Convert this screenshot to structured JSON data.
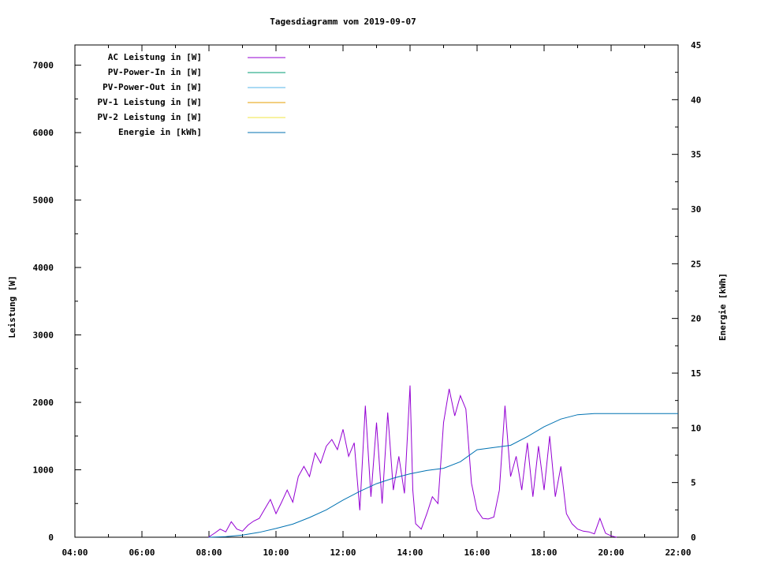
{
  "chart_data": {
    "type": "line",
    "title": "Tagesdiagramm vom 2019-09-07",
    "ylabel": "Leistung [W]",
    "y2label": "Energie [kWh]",
    "xlim": [
      "04:00",
      "22:00"
    ],
    "ylim": [
      0,
      7300
    ],
    "y2lim": [
      0,
      45
    ],
    "x_ticks": [
      "04:00",
      "06:00",
      "08:00",
      "10:00",
      "12:00",
      "14:00",
      "16:00",
      "18:00",
      "20:00",
      "22:00"
    ],
    "y_ticks": [
      0,
      1000,
      2000,
      3000,
      4000,
      5000,
      6000,
      7000
    ],
    "y2_ticks": [
      0,
      5,
      10,
      15,
      20,
      25,
      30,
      35,
      40,
      45
    ],
    "grid": false,
    "legend_position": "top-left",
    "series": [
      {
        "name": "AC Leistung in [W]",
        "color": "#9400d3",
        "axis": "left",
        "x": [
          "07:59",
          "08:10",
          "08:20",
          "08:30",
          "08:40",
          "08:50",
          "09:00",
          "09:10",
          "09:20",
          "09:30",
          "09:40",
          "09:50",
          "10:00",
          "10:10",
          "10:20",
          "10:30",
          "10:40",
          "10:50",
          "11:00",
          "11:10",
          "11:20",
          "11:30",
          "11:40",
          "11:50",
          "12:00",
          "12:10",
          "12:20",
          "12:30",
          "12:40",
          "12:50",
          "13:00",
          "13:10",
          "13:20",
          "13:30",
          "13:40",
          "13:50",
          "14:00",
          "14:05",
          "14:10",
          "14:20",
          "14:30",
          "14:40",
          "14:50",
          "15:00",
          "15:10",
          "15:20",
          "15:30",
          "15:40",
          "15:50",
          "16:00",
          "16:10",
          "16:20",
          "16:30",
          "16:40",
          "16:50",
          "17:00",
          "17:10",
          "17:20",
          "17:30",
          "17:40",
          "17:50",
          "18:00",
          "18:10",
          "18:20",
          "18:30",
          "18:40",
          "18:50",
          "19:00",
          "19:10",
          "19:20",
          "19:30",
          "19:40",
          "19:50",
          "20:00",
          "20:10"
        ],
        "y": [
          0,
          60,
          120,
          80,
          230,
          120,
          90,
          180,
          240,
          280,
          420,
          560,
          350,
          520,
          700,
          520,
          900,
          1050,
          900,
          1250,
          1100,
          1350,
          1450,
          1300,
          1600,
          1200,
          1400,
          400,
          1950,
          600,
          1700,
          500,
          1850,
          700,
          1200,
          650,
          2250,
          700,
          200,
          120,
          350,
          600,
          500,
          1700,
          2200,
          1800,
          2100,
          1900,
          800,
          400,
          280,
          270,
          300,
          700,
          1950,
          900,
          1200,
          700,
          1400,
          600,
          1350,
          700,
          1500,
          600,
          1050,
          350,
          200,
          120,
          90,
          80,
          50,
          280,
          60,
          20,
          0
        ]
      },
      {
        "name": "PV-Power-In in [W]",
        "color": "#009e73",
        "axis": "left",
        "x": [],
        "y": []
      },
      {
        "name": "PV-Power-Out in [W]",
        "color": "#56b4e9",
        "axis": "left",
        "x": [],
        "y": []
      },
      {
        "name": "PV-1 Leistung in [W]",
        "color": "#e69f00",
        "axis": "left",
        "x": [],
        "y": []
      },
      {
        "name": "PV-2 Leistung in [W]",
        "color": "#f0e442",
        "axis": "left",
        "x": [],
        "y": []
      },
      {
        "name": "Energie in [kWh]",
        "color": "#0072b2",
        "axis": "right",
        "x": [
          "08:00",
          "08:30",
          "09:00",
          "09:30",
          "10:00",
          "10:30",
          "11:00",
          "11:30",
          "12:00",
          "12:30",
          "13:00",
          "13:30",
          "14:00",
          "14:30",
          "15:00",
          "15:30",
          "16:00",
          "16:30",
          "17:00",
          "17:30",
          "18:00",
          "18:30",
          "19:00",
          "19:30",
          "20:00",
          "21:00",
          "22:00"
        ],
        "y": [
          0,
          0.05,
          0.2,
          0.45,
          0.8,
          1.2,
          1.8,
          2.5,
          3.4,
          4.2,
          4.9,
          5.4,
          5.8,
          6.1,
          6.3,
          6.9,
          8.0,
          8.2,
          8.4,
          9.2,
          10.1,
          10.8,
          11.2,
          11.3,
          11.3,
          11.3,
          11.3
        ]
      }
    ]
  }
}
